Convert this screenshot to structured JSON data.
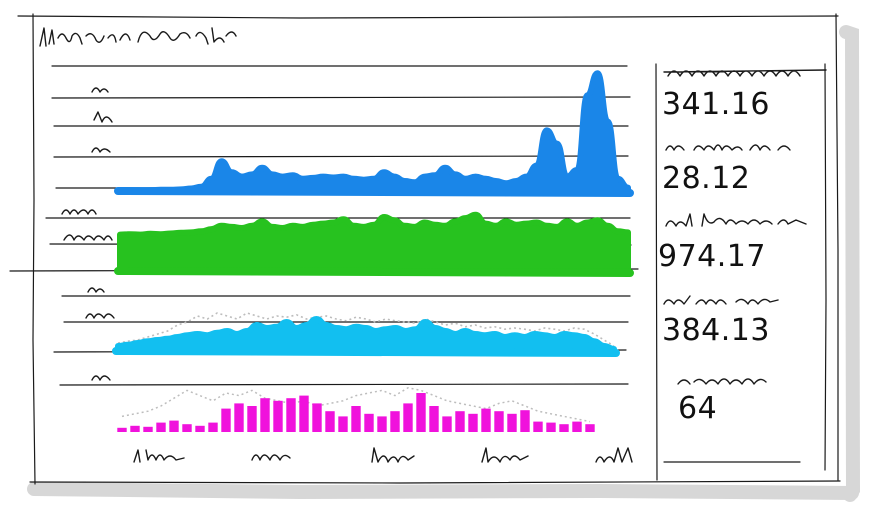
{
  "chart_data": [
    {
      "type": "area",
      "x": [
        0,
        1,
        2,
        3,
        4,
        5,
        6,
        7,
        8,
        9,
        10,
        11,
        12,
        13,
        14,
        15,
        16,
        17,
        18,
        19,
        20,
        21,
        22,
        23,
        24,
        25,
        26,
        27,
        28,
        29,
        30,
        31,
        32,
        33,
        34,
        35,
        36,
        37,
        38,
        39,
        40,
        41,
        42,
        43,
        44,
        45,
        46,
        47,
        48,
        49,
        50
      ],
      "series": [
        {
          "color": "#1a86e8",
          "values": [
            0.02,
            0.03,
            0.03,
            0.04,
            0.05,
            0.05,
            0.06,
            0.08,
            0.12,
            0.3,
            0.7,
            0.45,
            0.35,
            0.4,
            0.55,
            0.4,
            0.35,
            0.38,
            0.3,
            0.32,
            0.35,
            0.33,
            0.35,
            0.3,
            0.28,
            0.3,
            0.45,
            0.35,
            0.25,
            0.22,
            0.35,
            0.38,
            0.55,
            0.4,
            0.3,
            0.35,
            0.3,
            0.25,
            0.2,
            0.25,
            0.35,
            0.6,
            1.4,
            1.1,
            0.35,
            0.5,
            2.2,
            2.7,
            1.6,
            0.3,
            0.1
          ]
        }
      ]
    },
    {
      "type": "area",
      "x": [
        0,
        1,
        2,
        3,
        4,
        5,
        6,
        7,
        8,
        9,
        10,
        11,
        12,
        13,
        14,
        15,
        16,
        17,
        18,
        19,
        20,
        21,
        22,
        23,
        24,
        25,
        26,
        27,
        28,
        29,
        30,
        31,
        32,
        33,
        34,
        35,
        36,
        37,
        38,
        39,
        40,
        41,
        42,
        43,
        44,
        45,
        46,
        47,
        48,
        49,
        50
      ],
      "series": [
        {
          "color": "#27c21f",
          "values": [
            1.7,
            1.72,
            1.7,
            1.74,
            1.72,
            1.75,
            1.78,
            1.8,
            1.85,
            1.95,
            2.1,
            2.05,
            2.0,
            2.1,
            2.3,
            2.05,
            2.0,
            2.1,
            2.05,
            2.15,
            2.2,
            2.25,
            2.4,
            2.1,
            2.05,
            2.15,
            2.5,
            2.35,
            2.1,
            2.05,
            2.25,
            2.15,
            2.1,
            2.3,
            2.45,
            2.6,
            2.2,
            2.1,
            2.3,
            2.15,
            2.2,
            2.25,
            2.1,
            2.05,
            2.3,
            2.1,
            2.25,
            2.35,
            2.1,
            1.85,
            1.8
          ]
        }
      ]
    },
    {
      "type": "area",
      "x": [
        0,
        1,
        2,
        3,
        4,
        5,
        6,
        7,
        8,
        9,
        10,
        11,
        12,
        13,
        14,
        15,
        16,
        17,
        18,
        19,
        20,
        21,
        22,
        23,
        24,
        25,
        26,
        27,
        28,
        29,
        30,
        31,
        32,
        33,
        34,
        35,
        36,
        37,
        38,
        39,
        40,
        41,
        42,
        43,
        44,
        45,
        46,
        47,
        48,
        49,
        50
      ],
      "series": [
        {
          "color": "#12bff0",
          "values": [
            0.1,
            0.12,
            0.15,
            0.18,
            0.2,
            0.22,
            0.25,
            0.28,
            0.3,
            0.28,
            0.32,
            0.35,
            0.3,
            0.35,
            0.45,
            0.4,
            0.42,
            0.5,
            0.4,
            0.45,
            0.55,
            0.45,
            0.4,
            0.38,
            0.42,
            0.4,
            0.35,
            0.38,
            0.4,
            0.35,
            0.38,
            0.5,
            0.4,
            0.35,
            0.3,
            0.35,
            0.3,
            0.28,
            0.3,
            0.25,
            0.28,
            0.25,
            0.3,
            0.28,
            0.25,
            0.3,
            0.28,
            0.25,
            0.18,
            0.1,
            0.05
          ]
        },
        {
          "color": "#bdbdbd",
          "values": [
            0.15,
            0.18,
            0.2,
            0.25,
            0.3,
            0.35,
            0.45,
            0.5,
            0.6,
            0.55,
            0.65,
            0.6,
            0.55,
            0.65,
            0.6,
            0.55,
            0.6,
            0.58,
            0.62,
            0.55,
            0.58,
            0.6,
            0.55,
            0.52,
            0.58,
            0.55,
            0.5,
            0.55,
            0.52,
            0.5,
            0.48,
            0.55,
            0.5,
            0.45,
            0.48,
            0.42,
            0.45,
            0.4,
            0.42,
            0.38,
            0.4,
            0.38,
            0.35,
            0.4,
            0.38,
            0.35,
            0.4,
            0.38,
            0.3,
            0.2,
            0.1
          ]
        }
      ]
    },
    {
      "type": "bar",
      "x": [
        0,
        1,
        2,
        3,
        4,
        5,
        6,
        7,
        8,
        9,
        10,
        11,
        12,
        13,
        14,
        15,
        16,
        17,
        18,
        19,
        20,
        21,
        22,
        23,
        24,
        25,
        26,
        27,
        28,
        29,
        30,
        31,
        32,
        33,
        34,
        35,
        36
      ],
      "x_tick_labels": [
        "1/hm",
        "mm",
        "huu",
        "hee",
        "ull"
      ],
      "series": [
        {
          "color": "#f012dc",
          "values": [
            0.08,
            0.12,
            0.1,
            0.18,
            0.22,
            0.15,
            0.12,
            0.18,
            0.45,
            0.55,
            0.5,
            0.65,
            0.6,
            0.65,
            0.7,
            0.55,
            0.4,
            0.3,
            0.5,
            0.35,
            0.3,
            0.4,
            0.55,
            0.75,
            0.5,
            0.3,
            0.4,
            0.35,
            0.45,
            0.4,
            0.35,
            0.42,
            0.2,
            0.18,
            0.15,
            0.2,
            0.15
          ]
        },
        {
          "color": "#bdbdbd",
          "values": [
            0.3,
            0.35,
            0.4,
            0.5,
            0.65,
            0.8,
            0.7,
            0.6,
            0.75,
            0.7,
            0.8,
            0.65,
            0.6,
            0.55,
            0.6,
            0.5,
            0.55,
            0.6,
            0.7,
            0.75,
            0.8,
            0.7,
            0.85,
            0.8,
            0.7,
            0.6,
            0.55,
            0.5,
            0.45,
            0.55,
            0.6,
            0.5,
            0.4,
            0.35,
            0.3,
            0.25,
            0.2
          ]
        }
      ]
    }
  ],
  "stats": [
    {
      "value": "341.16"
    },
    {
      "value": "28.12"
    },
    {
      "value": "974.17"
    },
    {
      "value": "384.13"
    },
    {
      "value": "64"
    }
  ]
}
